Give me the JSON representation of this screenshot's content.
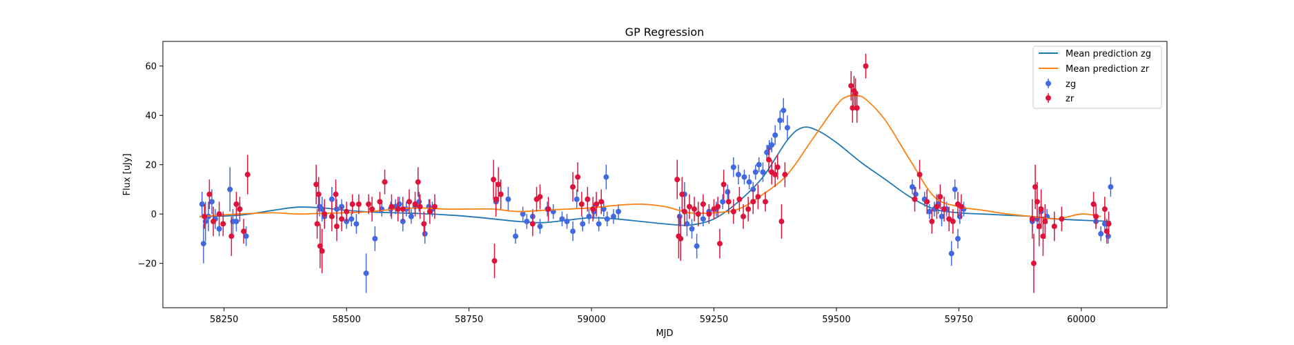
{
  "chart_data": {
    "type": "scatter",
    "title": "GP Regression",
    "xlabel": "MJD",
    "ylabel": "Flux [uJy]",
    "xlim": [
      58125,
      60175
    ],
    "ylim": [
      -38,
      70
    ],
    "x_ticks": [
      58250,
      58500,
      58750,
      59000,
      59250,
      59500,
      59750,
      60000
    ],
    "x_tick_labels": [
      "58250",
      "58500",
      "58750",
      "59000",
      "59250",
      "59500",
      "59750",
      "60000"
    ],
    "y_ticks": [
      -20,
      0,
      20,
      40,
      60
    ],
    "y_tick_labels": [
      "−20",
      "0",
      "20",
      "40",
      "60"
    ],
    "grid": false,
    "legend_position": "top-right",
    "legend": [
      "Mean prediction zg",
      "Mean prediction zr",
      "zg",
      "zr"
    ],
    "colors": {
      "zg_line": "#1f77b4",
      "zr_line": "#ff7f0e",
      "zg_points": "#4169e1",
      "zr_points": "#dc143c"
    },
    "lines": [
      {
        "name": "Mean prediction zg",
        "x": [
          58200,
          58280,
          58350,
          58400,
          58450,
          58500,
          58550,
          58600,
          58650,
          58700,
          58750,
          58800,
          58850,
          58900,
          58950,
          59000,
          59050,
          59100,
          59150,
          59200,
          59250,
          59300,
          59350,
          59400,
          59430,
          59460,
          59500,
          59550,
          59600,
          59650,
          59700,
          59750,
          59800,
          59850,
          59900,
          59950,
          60000,
          60060
        ],
        "y": [
          -1,
          -0.5,
          1.5,
          2.8,
          2.5,
          1.5,
          0.8,
          0.5,
          0.2,
          -0.3,
          -1.0,
          -2.0,
          -3.0,
          -3.5,
          -2.5,
          -1.5,
          -2.0,
          -3.0,
          -4.0,
          -4.5,
          -2,
          5,
          15,
          30,
          35,
          34,
          29,
          21,
          14,
          7,
          2,
          0.5,
          0,
          -0.5,
          -1,
          -2,
          -2.5,
          -3
        ]
      },
      {
        "name": "Mean prediction zr",
        "x": [
          58200,
          58280,
          58350,
          58400,
          58450,
          58500,
          58550,
          58600,
          58650,
          58700,
          58750,
          58800,
          58850,
          58900,
          58950,
          59000,
          59050,
          59100,
          59150,
          59200,
          59250,
          59300,
          59350,
          59400,
          59450,
          59500,
          59520,
          59540,
          59560,
          59600,
          59650,
          59700,
          59750,
          59800,
          59850,
          59900,
          59950,
          60000,
          60040
        ],
        "y": [
          -1,
          0,
          0.5,
          0,
          0.3,
          0.5,
          1,
          2,
          2.5,
          2,
          2,
          2,
          1,
          1.5,
          2,
          2.5,
          3.5,
          4,
          3,
          0.5,
          0.5,
          2,
          8,
          16,
          30,
          44,
          47.5,
          48,
          46.5,
          38,
          22,
          7,
          3,
          1.5,
          0,
          -1,
          -2,
          0,
          -1
        ]
      }
    ],
    "series": [
      {
        "name": "zg",
        "points": [
          [
            58205,
            4,
            5
          ],
          [
            58208,
            -12,
            8
          ],
          [
            58212,
            -3,
            8
          ],
          [
            58218,
            -1,
            6
          ],
          [
            58225,
            5,
            5
          ],
          [
            58232,
            -2,
            4
          ],
          [
            58240,
            -6,
            3
          ],
          [
            58262,
            10,
            9
          ],
          [
            58268,
            -3,
            5
          ],
          [
            58275,
            -3,
            4
          ],
          [
            58282,
            2,
            3
          ],
          [
            58295,
            -9,
            4
          ],
          [
            58445,
            3,
            4
          ],
          [
            58450,
            2,
            5
          ],
          [
            58455,
            -1,
            4
          ],
          [
            58470,
            6,
            5
          ],
          [
            58480,
            2,
            4
          ],
          [
            58490,
            3,
            3
          ],
          [
            58500,
            -3,
            3
          ],
          [
            58510,
            -2,
            3
          ],
          [
            58520,
            -4,
            4
          ],
          [
            58540,
            -24,
            8
          ],
          [
            58558,
            -10,
            5
          ],
          [
            58572,
            2,
            3
          ],
          [
            58590,
            2,
            3
          ],
          [
            58600,
            3,
            3
          ],
          [
            58608,
            4,
            3
          ],
          [
            58615,
            -3,
            4
          ],
          [
            58622,
            2,
            3
          ],
          [
            58632,
            -1,
            3
          ],
          [
            58640,
            3,
            3
          ],
          [
            58648,
            5,
            4
          ],
          [
            58660,
            -8,
            4
          ],
          [
            58668,
            3,
            3
          ],
          [
            58675,
            2,
            3
          ],
          [
            58805,
            5,
            4
          ],
          [
            58830,
            6,
            5
          ],
          [
            58845,
            -9,
            3
          ],
          [
            58860,
            0,
            3
          ],
          [
            58868,
            -3,
            3
          ],
          [
            58880,
            -1,
            3
          ],
          [
            58895,
            -5,
            3
          ],
          [
            58910,
            2,
            3
          ],
          [
            58922,
            1,
            3
          ],
          [
            58940,
            -2,
            3
          ],
          [
            58950,
            -3,
            3
          ],
          [
            58962,
            -7,
            4
          ],
          [
            58970,
            6,
            4
          ],
          [
            58982,
            -4,
            3
          ],
          [
            58995,
            -1,
            3
          ],
          [
            59005,
            1,
            3
          ],
          [
            59015,
            -4,
            3
          ],
          [
            59025,
            2,
            3
          ],
          [
            59032,
            -2,
            3
          ],
          [
            59045,
            -1,
            3
          ],
          [
            59055,
            1,
            3
          ],
          [
            59030,
            15,
            5
          ],
          [
            59180,
            -1,
            4
          ],
          [
            59190,
            8,
            5
          ],
          [
            59195,
            -4,
            5
          ],
          [
            59205,
            -6,
            4
          ],
          [
            59215,
            -13,
            5
          ],
          [
            59228,
            -2,
            3
          ],
          [
            59240,
            1,
            3
          ],
          [
            59255,
            2,
            3
          ],
          [
            59268,
            5,
            3
          ],
          [
            59278,
            9,
            3
          ],
          [
            59290,
            19,
            4
          ],
          [
            59300,
            16,
            4
          ],
          [
            59312,
            15,
            3
          ],
          [
            59322,
            13,
            3
          ],
          [
            59330,
            10,
            3
          ],
          [
            59335,
            17,
            3
          ],
          [
            59342,
            20,
            3
          ],
          [
            59350,
            17,
            4
          ],
          [
            59358,
            25,
            3
          ],
          [
            59363,
            27,
            3
          ],
          [
            59368,
            28,
            3
          ],
          [
            59375,
            32,
            4
          ],
          [
            59385,
            38,
            4
          ],
          [
            59392,
            42,
            5
          ],
          [
            59400,
            35,
            5
          ],
          [
            59655,
            11,
            3
          ],
          [
            59662,
            8,
            3
          ],
          [
            59680,
            6,
            3
          ],
          [
            59690,
            1,
            3
          ],
          [
            59700,
            2,
            3
          ],
          [
            59708,
            4,
            4
          ],
          [
            59715,
            -1,
            4
          ],
          [
            59725,
            2,
            3
          ],
          [
            59735,
            -16,
            5
          ],
          [
            59742,
            10,
            4
          ],
          [
            59748,
            -10,
            4
          ],
          [
            59752,
            -1,
            3
          ],
          [
            59760,
            2,
            3
          ],
          [
            59900,
            -3,
            4
          ],
          [
            59910,
            -2,
            4
          ],
          [
            59918,
            1,
            3
          ],
          [
            59930,
            -1,
            3
          ],
          [
            60030,
            -3,
            3
          ],
          [
            60040,
            -8,
            3
          ],
          [
            60048,
            -4,
            3
          ],
          [
            60055,
            -9,
            3
          ],
          [
            60060,
            11,
            4
          ]
        ]
      },
      {
        "name": "zr",
        "points": [
          [
            58210,
            -1,
            5
          ],
          [
            58220,
            8,
            6
          ],
          [
            58228,
            -3,
            6
          ],
          [
            58240,
            0,
            5
          ],
          [
            58248,
            -4,
            5
          ],
          [
            58265,
            -9,
            8
          ],
          [
            58275,
            4,
            5
          ],
          [
            58282,
            2,
            5
          ],
          [
            58290,
            -7,
            5
          ],
          [
            58298,
            16,
            8
          ],
          [
            58438,
            12,
            8
          ],
          [
            58440,
            -4,
            6
          ],
          [
            58443,
            8,
            7
          ],
          [
            58446,
            -13,
            9
          ],
          [
            58450,
            -15,
            9
          ],
          [
            58455,
            0,
            6
          ],
          [
            58470,
            -1,
            6
          ],
          [
            58478,
            8,
            6
          ],
          [
            58480,
            -5,
            6
          ],
          [
            58490,
            -2,
            5
          ],
          [
            58500,
            1,
            4
          ],
          [
            58512,
            4,
            4
          ],
          [
            58525,
            4,
            4
          ],
          [
            58545,
            4,
            4
          ],
          [
            58552,
            2,
            5
          ],
          [
            58568,
            5,
            4
          ],
          [
            58578,
            13,
            5
          ],
          [
            58592,
            3,
            5
          ],
          [
            58605,
            2,
            5
          ],
          [
            58615,
            2,
            5
          ],
          [
            58628,
            5,
            5
          ],
          [
            58640,
            4,
            5
          ],
          [
            58646,
            13,
            6
          ],
          [
            58650,
            3,
            5
          ],
          [
            58658,
            -4,
            5
          ],
          [
            58670,
            1,
            5
          ],
          [
            58680,
            3,
            5
          ],
          [
            58800,
            14,
            8
          ],
          [
            58802,
            -19,
            7
          ],
          [
            58805,
            6,
            7
          ],
          [
            58810,
            12,
            7
          ],
          [
            58815,
            8,
            6
          ],
          [
            58880,
            -4,
            5
          ],
          [
            58888,
            6,
            5
          ],
          [
            58895,
            7,
            5
          ],
          [
            58912,
            2,
            5
          ],
          [
            58962,
            11,
            6
          ],
          [
            58972,
            15,
            6
          ],
          [
            58980,
            4,
            5
          ],
          [
            58992,
            6,
            5
          ],
          [
            59003,
            2,
            5
          ],
          [
            59010,
            4,
            5
          ],
          [
            59020,
            5,
            5
          ],
          [
            59175,
            14,
            8
          ],
          [
            59178,
            -9,
            9
          ],
          [
            59182,
            -10,
            9
          ],
          [
            59185,
            8,
            7
          ],
          [
            59190,
            1,
            6
          ],
          [
            59200,
            3,
            5
          ],
          [
            59210,
            2,
            5
          ],
          [
            59218,
            0,
            5
          ],
          [
            59228,
            4,
            4
          ],
          [
            59240,
            0,
            4
          ],
          [
            59250,
            2,
            4
          ],
          [
            59258,
            3,
            4
          ],
          [
            59262,
            -12,
            6
          ],
          [
            59270,
            12,
            6
          ],
          [
            59280,
            5,
            5
          ],
          [
            59290,
            1,
            5
          ],
          [
            59302,
            6,
            5
          ],
          [
            59310,
            -1,
            5
          ],
          [
            59320,
            2,
            5
          ],
          [
            59330,
            5,
            5
          ],
          [
            59340,
            7,
            5
          ],
          [
            59355,
            5,
            4
          ],
          [
            59362,
            22,
            5
          ],
          [
            59368,
            17,
            5
          ],
          [
            59375,
            16,
            5
          ],
          [
            59380,
            19,
            5
          ],
          [
            59388,
            -3,
            7
          ],
          [
            59395,
            16,
            5
          ],
          [
            59530,
            52,
            6
          ],
          [
            59533,
            43,
            6
          ],
          [
            59536,
            50,
            6
          ],
          [
            59539,
            49,
            6
          ],
          [
            59542,
            43,
            6
          ],
          [
            59560,
            60,
            5
          ],
          [
            59660,
            6,
            5
          ],
          [
            59670,
            16,
            6
          ],
          [
            59685,
            5,
            5
          ],
          [
            59695,
            -3,
            5
          ],
          [
            59705,
            3,
            5
          ],
          [
            59712,
            7,
            5
          ],
          [
            59720,
            2,
            5
          ],
          [
            59730,
            -2,
            5
          ],
          [
            59738,
            -3,
            5
          ],
          [
            59748,
            4,
            5
          ],
          [
            59755,
            3,
            5
          ],
          [
            59900,
            -2,
            8
          ],
          [
            59903,
            -20,
            12
          ],
          [
            59906,
            11,
            9
          ],
          [
            59910,
            5,
            8
          ],
          [
            59914,
            -5,
            8
          ],
          [
            59918,
            2,
            8
          ],
          [
            59922,
            -9,
            8
          ],
          [
            59926,
            -3,
            7
          ],
          [
            59945,
            -5,
            6
          ],
          [
            59960,
            -2,
            5
          ],
          [
            60025,
            4,
            5
          ],
          [
            60030,
            -1,
            5
          ],
          [
            60048,
            2,
            5
          ],
          [
            60052,
            -7,
            5
          ],
          [
            60056,
            -4,
            5
          ]
        ]
      }
    ]
  }
}
